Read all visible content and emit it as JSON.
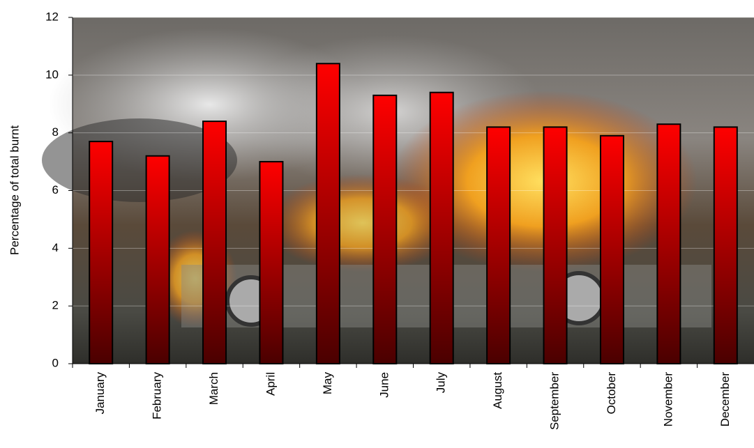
{
  "chart_data": {
    "type": "bar",
    "y_label": "Percentage of total burnt",
    "categories": [
      "January",
      "February",
      "March",
      "April",
      "May",
      "June",
      "July",
      "August",
      "September",
      "October",
      "November",
      "December"
    ],
    "values": [
      7.7,
      7.2,
      8.4,
      7.0,
      10.4,
      9.3,
      9.4,
      8.2,
      8.2,
      7.9,
      8.3,
      8.2
    ],
    "color": "#ff0000",
    "ylim": [
      0,
      12
    ],
    "yticks": [
      0,
      2,
      4,
      6,
      8,
      10,
      12
    ],
    "grid": true
  }
}
